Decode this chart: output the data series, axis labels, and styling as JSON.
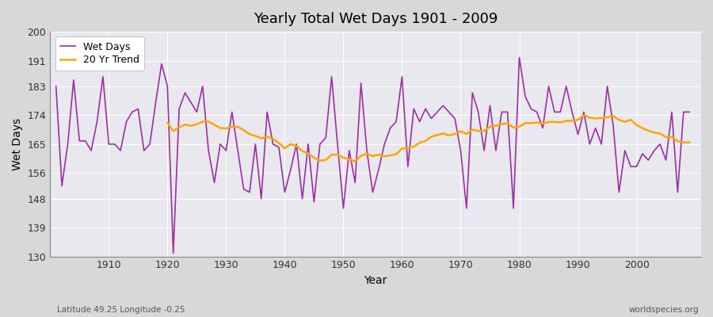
{
  "title": "Yearly Total Wet Days 1901 - 2009",
  "xlabel": "Year",
  "ylabel": "Wet Days",
  "subtitle": "Latitude 49.25 Longitude -0.25",
  "watermark": "worldspecies.org",
  "ylim": [
    130,
    200
  ],
  "yticks": [
    130,
    139,
    148,
    156,
    165,
    174,
    183,
    191,
    200
  ],
  "xticks": [
    1910,
    1920,
    1930,
    1940,
    1950,
    1960,
    1970,
    1980,
    1990,
    2000
  ],
  "line_color": "#9B30A0",
  "trend_color": "#FFA500",
  "fig_bg_color": "#D8D8D8",
  "plot_bg_color": "#E8E8EE",
  "legend_labels": [
    "Wet Days",
    "20 Yr Trend"
  ],
  "years": [
    1901,
    1902,
    1903,
    1904,
    1905,
    1906,
    1907,
    1908,
    1909,
    1910,
    1911,
    1912,
    1913,
    1914,
    1915,
    1916,
    1917,
    1918,
    1919,
    1920,
    1921,
    1922,
    1923,
    1924,
    1925,
    1926,
    1927,
    1928,
    1929,
    1930,
    1931,
    1932,
    1933,
    1934,
    1935,
    1936,
    1937,
    1938,
    1939,
    1940,
    1941,
    1942,
    1943,
    1944,
    1945,
    1946,
    1947,
    1948,
    1949,
    1950,
    1951,
    1952,
    1953,
    1954,
    1955,
    1956,
    1957,
    1958,
    1959,
    1960,
    1961,
    1962,
    1963,
    1964,
    1965,
    1966,
    1967,
    1968,
    1969,
    1970,
    1971,
    1972,
    1973,
    1974,
    1975,
    1976,
    1977,
    1978,
    1979,
    1980,
    1981,
    1982,
    1983,
    1984,
    1985,
    1986,
    1987,
    1988,
    1989,
    1990,
    1991,
    1992,
    1993,
    1994,
    1995,
    1996,
    1997,
    1998,
    1999,
    2000,
    2001,
    2002,
    2003,
    2004,
    2005,
    2006,
    2007,
    2008,
    2009
  ],
  "wet_days": [
    183,
    152,
    165,
    185,
    166,
    166,
    163,
    172,
    186,
    165,
    165,
    163,
    172,
    175,
    176,
    163,
    165,
    178,
    190,
    183,
    131,
    176,
    181,
    178,
    175,
    183,
    163,
    153,
    165,
    163,
    175,
    163,
    151,
    150,
    165,
    148,
    175,
    165,
    164,
    150,
    157,
    165,
    148,
    165,
    147,
    165,
    167,
    186,
    165,
    145,
    163,
    153,
    184,
    163,
    150,
    157,
    165,
    170,
    172,
    186,
    158,
    176,
    172,
    176,
    173,
    175,
    177,
    175,
    173,
    163,
    145,
    181,
    175,
    163,
    177,
    163,
    175,
    175,
    145,
    192,
    180,
    176,
    175,
    170,
    183,
    175,
    175,
    183,
    175,
    168,
    175,
    165,
    170,
    165,
    183,
    171,
    150,
    163,
    158,
    158,
    162,
    160,
    163,
    165,
    160,
    175,
    150,
    175,
    175
  ]
}
